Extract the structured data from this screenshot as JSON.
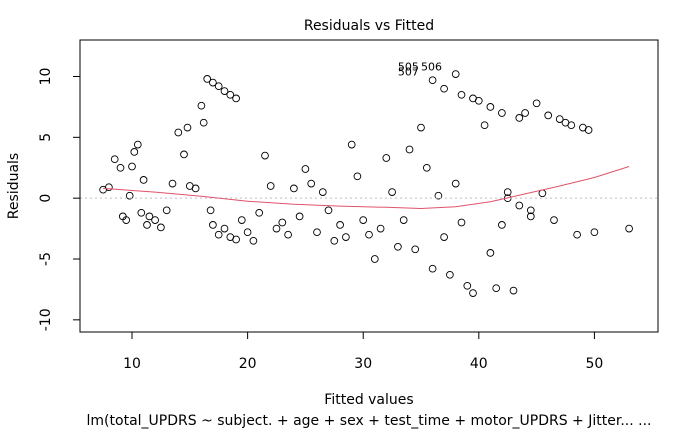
{
  "chart_data": {
    "type": "scatter",
    "title": "Residuals vs Fitted",
    "xlabel": "Fitted values",
    "ylabel": "Residuals",
    "subtitle": "lm(total_UPDRS ~ subject. + age + sex + test_time + motor_UPDRS + Jitter... ...",
    "xlim": [
      5.5,
      55.5
    ],
    "ylim": [
      -11,
      13
    ],
    "x_ticks": [
      10,
      20,
      30,
      40,
      50
    ],
    "y_ticks": [
      -10,
      -5,
      0,
      5,
      10
    ],
    "x_tick_labels": [
      "10",
      "20",
      "30",
      "40",
      "50"
    ],
    "y_tick_labels": [
      "-10",
      "-5",
      "0",
      "5",
      "10"
    ],
    "zero_line": 0,
    "point_style": "open-circle",
    "point_color": "#000000",
    "smoother_color": "#df536b",
    "smoother": [
      {
        "x": 7.5,
        "y": 0.8
      },
      {
        "x": 12,
        "y": 0.5
      },
      {
        "x": 16,
        "y": 0.15
      },
      {
        "x": 20,
        "y": -0.25
      },
      {
        "x": 24,
        "y": -0.5
      },
      {
        "x": 28,
        "y": -0.65
      },
      {
        "x": 32,
        "y": -0.75
      },
      {
        "x": 35,
        "y": -0.85
      },
      {
        "x": 38,
        "y": -0.7
      },
      {
        "x": 41,
        "y": -0.3
      },
      {
        "x": 44,
        "y": 0.35
      },
      {
        "x": 47,
        "y": 1.0
      },
      {
        "x": 50,
        "y": 1.7
      },
      {
        "x": 53,
        "y": 2.6
      }
    ],
    "annotations": [
      {
        "text": "505",
        "x": 33.0,
        "y": 10.5
      },
      {
        "text": "506",
        "x": 35.0,
        "y": 10.5
      },
      {
        "text": "507",
        "x": 33.0,
        "y": 10.1
      }
    ],
    "points": [
      [
        7.5,
        0.7
      ],
      [
        8,
        0.9
      ],
      [
        8.5,
        3.2
      ],
      [
        9,
        2.5
      ],
      [
        9.2,
        -1.5
      ],
      [
        9.5,
        -1.8
      ],
      [
        9.8,
        0.2
      ],
      [
        10,
        2.6
      ],
      [
        10.2,
        3.8
      ],
      [
        10.5,
        4.4
      ],
      [
        10.8,
        -1.2
      ],
      [
        11,
        1.5
      ],
      [
        11.3,
        -2.2
      ],
      [
        11.5,
        -1.5
      ],
      [
        12,
        -1.8
      ],
      [
        12.5,
        -2.4
      ],
      [
        13,
        -1.0
      ],
      [
        13.5,
        1.2
      ],
      [
        14,
        5.4
      ],
      [
        14.5,
        3.6
      ],
      [
        14.8,
        5.8
      ],
      [
        15,
        1.0
      ],
      [
        15.5,
        0.8
      ],
      [
        16,
        7.6
      ],
      [
        16.2,
        6.2
      ],
      [
        16.5,
        9.8
      ],
      [
        17,
        9.5
      ],
      [
        17.5,
        9.2
      ],
      [
        18,
        8.8
      ],
      [
        18.5,
        8.5
      ],
      [
        19,
        8.2
      ],
      [
        16.8,
        -1.0
      ],
      [
        17,
        -2.2
      ],
      [
        17.5,
        -3.0
      ],
      [
        18,
        -2.5
      ],
      [
        18.5,
        -3.2
      ],
      [
        19,
        -3.4
      ],
      [
        19.5,
        -1.8
      ],
      [
        20,
        -2.8
      ],
      [
        20.5,
        -3.5
      ],
      [
        21,
        -1.2
      ],
      [
        21.5,
        3.5
      ],
      [
        22,
        1.0
      ],
      [
        22.5,
        -2.5
      ],
      [
        23,
        -2.0
      ],
      [
        23.5,
        -3.0
      ],
      [
        24,
        0.8
      ],
      [
        24.5,
        -1.5
      ],
      [
        25,
        2.4
      ],
      [
        25.5,
        1.2
      ],
      [
        26,
        -2.8
      ],
      [
        26.5,
        0.5
      ],
      [
        27,
        -1.0
      ],
      [
        27.5,
        -3.5
      ],
      [
        28,
        -2.2
      ],
      [
        28.5,
        -3.2
      ],
      [
        29,
        4.4
      ],
      [
        29.5,
        1.8
      ],
      [
        30,
        -1.8
      ],
      [
        30.5,
        -3.0
      ],
      [
        31,
        -5.0
      ],
      [
        31.5,
        -2.5
      ],
      [
        32,
        3.3
      ],
      [
        32.5,
        0.5
      ],
      [
        33,
        -4.0
      ],
      [
        33.5,
        -1.8
      ],
      [
        34,
        4.0
      ],
      [
        34.5,
        -4.2
      ],
      [
        35,
        5.8
      ],
      [
        35.5,
        2.5
      ],
      [
        36,
        -5.8
      ],
      [
        36.5,
        0.2
      ],
      [
        37,
        -3.2
      ],
      [
        37.5,
        -6.3
      ],
      [
        38,
        1.2
      ],
      [
        38.5,
        -2.0
      ],
      [
        39,
        -7.2
      ],
      [
        39.5,
        -7.8
      ],
      [
        40,
        8.0
      ],
      [
        40.5,
        6.0
      ],
      [
        41,
        -4.5
      ],
      [
        41.5,
        -7.4
      ],
      [
        42,
        -2.2
      ],
      [
        42.5,
        0.5
      ],
      [
        43,
        -7.6
      ],
      [
        43.5,
        6.6
      ],
      [
        44,
        7.0
      ],
      [
        44.5,
        -1.0
      ],
      [
        45,
        7.8
      ],
      [
        45.5,
        0.4
      ],
      [
        46,
        6.8
      ],
      [
        46.5,
        -1.8
      ],
      [
        47,
        6.5
      ],
      [
        47.5,
        6.2
      ],
      [
        48,
        6.0
      ],
      [
        48.5,
        -3.0
      ],
      [
        49,
        5.8
      ],
      [
        49.5,
        5.6
      ],
      [
        50,
        -2.8
      ],
      [
        53,
        -2.5
      ],
      [
        38,
        10.2
      ],
      [
        38.5,
        8.5
      ],
      [
        39.5,
        8.2
      ],
      [
        41,
        7.5
      ],
      [
        42,
        7.0
      ],
      [
        36,
        9.7
      ],
      [
        37,
        9.0
      ],
      [
        42.5,
        0.0
      ],
      [
        43.5,
        -0.6
      ],
      [
        44.5,
        -1.5
      ]
    ]
  }
}
